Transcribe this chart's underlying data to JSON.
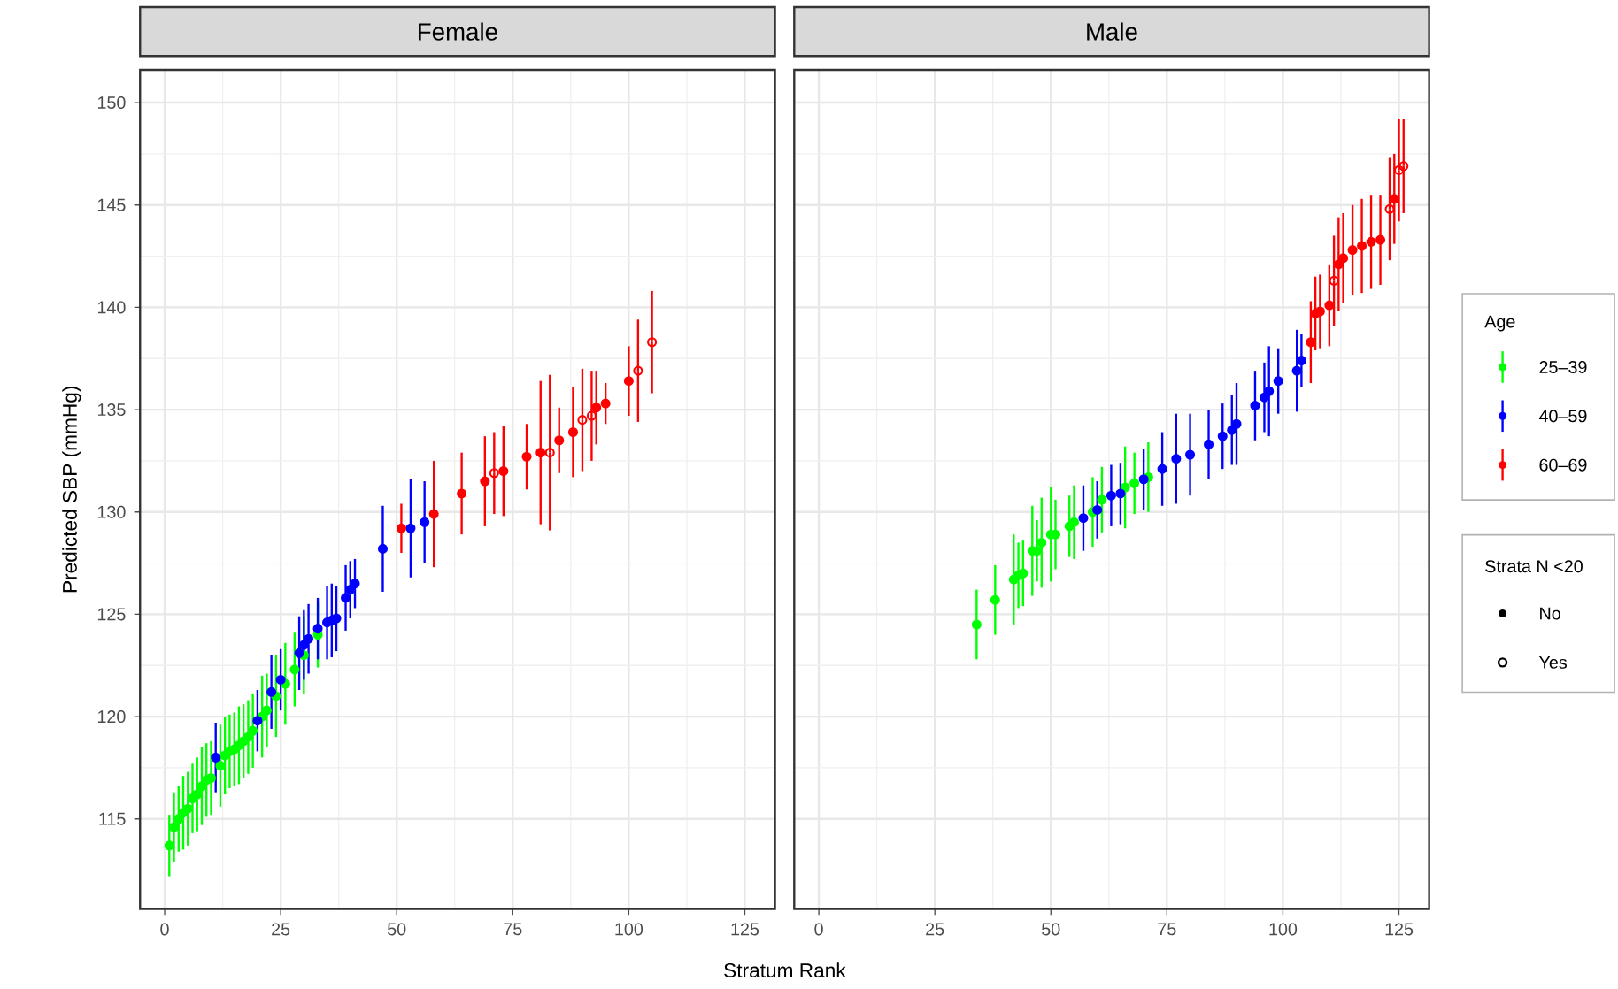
{
  "chart_data": [
    {
      "type": "scatter",
      "title": "Female",
      "xlabel": "Stratum Rank",
      "ylabel": "Predicted SBP (mmHg)",
      "xlim": [
        -5.3,
        131.5
      ],
      "ylim": [
        110.6,
        151.6
      ],
      "xticks": [
        0,
        25,
        50,
        75,
        100,
        125
      ],
      "yticks": [
        115,
        120,
        125,
        130,
        135,
        140,
        145,
        150
      ],
      "grid": true,
      "series": [
        {
          "color": "#00ff00",
          "marker": "circle",
          "x": [
            1,
            2,
            3,
            4,
            5,
            6,
            7,
            8,
            9,
            10,
            12,
            13,
            14,
            15,
            16,
            17,
            18,
            19,
            21,
            22,
            24,
            26,
            28,
            30,
            33
          ],
          "values": [
            113.7,
            114.6,
            115.0,
            115.3,
            115.5,
            116.0,
            116.2,
            116.6,
            116.9,
            117.0,
            117.6,
            118.1,
            118.3,
            118.4,
            118.6,
            118.8,
            119.0,
            119.3,
            120.0,
            120.3,
            121.0,
            121.6,
            122.3,
            123.0,
            124.0
          ],
          "errors": [
            1.5,
            1.7,
            1.6,
            1.8,
            1.8,
            1.7,
            1.8,
            1.9,
            1.8,
            1.8,
            2.0,
            1.9,
            1.8,
            1.8,
            1.9,
            1.8,
            1.8,
            1.8,
            2.0,
            1.8,
            2.0,
            2.0,
            1.8,
            1.9,
            1.6
          ]
        },
        {
          "color": "#0000ff",
          "marker": "circle",
          "x": [
            11,
            20,
            23,
            25,
            29,
            30,
            31,
            33,
            35,
            36,
            37,
            39,
            40,
            41,
            47,
            53,
            56
          ],
          "values": [
            118.0,
            119.8,
            121.2,
            121.8,
            123.1,
            123.5,
            123.8,
            124.3,
            124.6,
            124.7,
            124.8,
            125.8,
            126.2,
            126.5,
            128.2,
            129.2,
            129.5
          ],
          "errors": [
            1.7,
            1.5,
            1.8,
            1.5,
            1.8,
            1.7,
            1.7,
            1.5,
            1.8,
            1.8,
            1.6,
            1.6,
            1.4,
            1.2,
            2.1,
            2.4,
            2.0
          ]
        },
        {
          "color": "#ff0000",
          "marker": "circle",
          "x": [
            51,
            58,
            64,
            69,
            73,
            78,
            81,
            85,
            88,
            93,
            95,
            100
          ],
          "values": [
            129.2,
            129.9,
            130.9,
            131.5,
            132.0,
            132.7,
            132.9,
            133.5,
            133.9,
            135.1,
            135.3,
            136.4
          ],
          "errors": [
            1.2,
            2.6,
            2.0,
            2.2,
            2.2,
            1.6,
            3.5,
            1.6,
            2.2,
            1.8,
            1.0,
            1.7
          ]
        },
        {
          "color": "#ff0000",
          "marker": "open circle",
          "x": [
            71,
            83,
            90,
            92,
            102,
            105
          ],
          "values": [
            131.9,
            132.9,
            134.5,
            134.7,
            136.9,
            138.3
          ],
          "errors": [
            2.0,
            3.8,
            2.5,
            2.2,
            2.5,
            2.5
          ]
        }
      ]
    },
    {
      "type": "scatter",
      "title": "Male",
      "xlim": [
        -5.3,
        131.5
      ],
      "ylim": [
        110.6,
        151.6
      ],
      "xticks": [
        0,
        25,
        50,
        75,
        100,
        125
      ],
      "yticks": [
        115,
        120,
        125,
        130,
        135,
        140,
        145,
        150
      ],
      "grid": true,
      "tick_labels": "x",
      "legend": "right",
      "legend_title": "Age",
      "annotations": [
        "Strata N <20",
        "No",
        "Yes"
      ],
      "series": [
        {
          "name": "25–39",
          "color": "#00ff00",
          "marker": "circle",
          "x": [
            34,
            38,
            42,
            43,
            44,
            46,
            47,
            48,
            50,
            51,
            54,
            55,
            59,
            61,
            66,
            68,
            71
          ],
          "values": [
            124.5,
            125.7,
            126.7,
            126.9,
            127.0,
            128.1,
            128.1,
            128.5,
            128.9,
            128.9,
            129.3,
            129.5,
            130.0,
            130.6,
            131.2,
            131.4,
            131.7
          ],
          "errors": [
            1.7,
            1.7,
            2.2,
            1.6,
            1.6,
            2.2,
            1.5,
            2.2,
            2.3,
            1.7,
            1.5,
            1.8,
            1.7,
            1.6,
            2.0,
            1.5,
            1.7
          ]
        },
        {
          "name": "40–59",
          "color": "#0000ff",
          "marker": "circle",
          "x": [
            57,
            60,
            63,
            65,
            70,
            74,
            77,
            80,
            84,
            87,
            89,
            90,
            94,
            96,
            97,
            99,
            103,
            104
          ],
          "values": [
            129.7,
            130.1,
            130.8,
            130.9,
            131.6,
            132.1,
            132.6,
            132.8,
            133.3,
            133.7,
            134.0,
            134.3,
            135.2,
            135.6,
            135.9,
            136.4,
            136.9,
            137.4
          ],
          "errors": [
            1.6,
            1.4,
            1.5,
            1.5,
            1.5,
            1.8,
            2.2,
            2.0,
            1.7,
            1.6,
            1.7,
            2.0,
            1.7,
            1.7,
            2.2,
            1.6,
            2.0,
            1.3
          ]
        },
        {
          "name": "60–69",
          "color": "#ff0000",
          "marker": "circle",
          "x": [
            106,
            107,
            108,
            110,
            112,
            113,
            115,
            117,
            119,
            121,
            124
          ],
          "values": [
            138.3,
            139.7,
            139.8,
            140.1,
            142.1,
            142.4,
            142.8,
            143.0,
            143.2,
            143.3,
            145.3
          ],
          "errors": [
            2.0,
            1.8,
            1.8,
            2.0,
            2.3,
            2.2,
            2.2,
            2.3,
            2.3,
            2.2,
            2.2
          ]
        },
        {
          "color": "#ff0000",
          "marker": "open circle",
          "x": [
            111,
            123,
            125,
            126
          ],
          "values": [
            141.3,
            144.8,
            146.7,
            146.9
          ],
          "errors": [
            2.2,
            2.5,
            2.5,
            2.3
          ]
        }
      ]
    }
  ]
}
